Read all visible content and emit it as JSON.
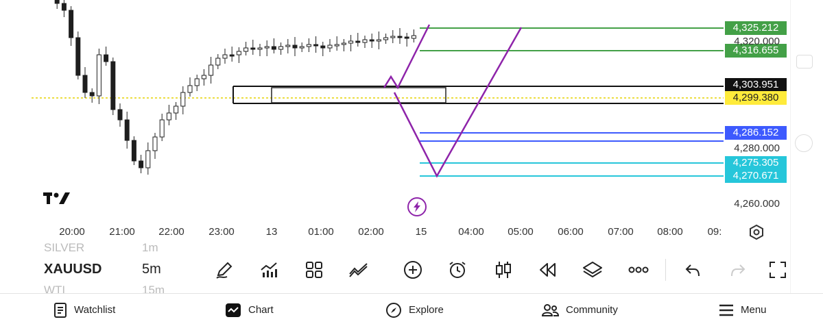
{
  "chart": {
    "price_tags": [
      {
        "label": "4,325.212",
        "color": "#43a047",
        "text": "#ffffff"
      },
      {
        "label": "4,316.655",
        "color": "#43a047",
        "text": "#ffffff"
      },
      {
        "label": "4,303.951",
        "color": "#111111",
        "text": "#ffffff"
      },
      {
        "label": "4,299.380",
        "color": "#ffeb3b",
        "text": "#222222"
      },
      {
        "label": "4,286.152",
        "color": "#3d5afe",
        "text": "#ffffff"
      },
      {
        "label": "4,275.305",
        "color": "#26c6da",
        "text": "#ffffff"
      },
      {
        "label": "4,270.671",
        "color": "#26c6da",
        "text": "#ffffff"
      }
    ],
    "axis_prices": [
      "4,320.000",
      "4,280.000",
      "4,260.000"
    ],
    "time_labels": [
      "20:00",
      "21:00",
      "22:00",
      "23:00",
      "13",
      "01:00",
      "02:00",
      "15",
      "04:00",
      "05:00",
      "06:00",
      "07:00",
      "08:00",
      "09:"
    ],
    "colors": {
      "green": "#43a047",
      "blue": "#3d5afe",
      "cyan": "#26c6da",
      "purple": "#8e24aa",
      "candle": "#1e1e1e",
      "current_price_line": "#e6d200"
    },
    "logo_icon": "tradingview-logo-icon",
    "replay_icon": "lightning-icon",
    "settings_icon": "hexagon-gear-icon"
  },
  "toolbar": {
    "ghost_above": "SILVER",
    "ghost_above_interval": "1m",
    "symbol": "XAUUSD",
    "interval": "5m",
    "ghost_below": "WTI",
    "ghost_below_interval": "15m",
    "tools": [
      "pencil-icon",
      "indicators-icon",
      "layout-icon",
      "compare-icon",
      "add-icon",
      "alarm-icon",
      "candles-icon",
      "replay-icon",
      "layers-icon",
      "more-icon",
      "undo-icon",
      "redo-icon",
      "fullscreen-icon"
    ]
  },
  "nav": {
    "watchlist": "Watchlist",
    "chart": "Chart",
    "explore": "Explore",
    "community": "Community",
    "menu": "Menu"
  }
}
